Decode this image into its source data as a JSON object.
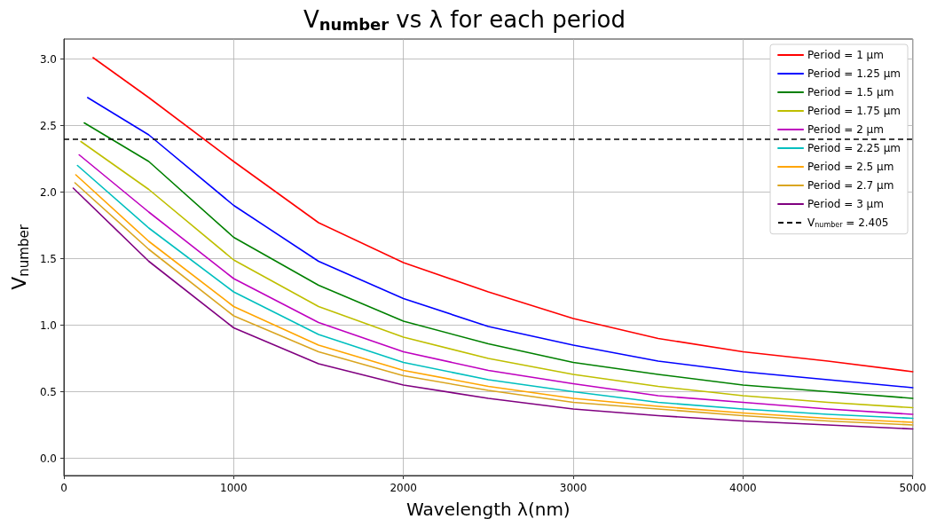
{
  "chart_data": {
    "type": "line",
    "title": "V$_{number}$ vs λ for each period",
    "xlabel": "Wavelength λ(nm)",
    "ylabel": "V$_{number}$",
    "xlim": [
      0,
      5000
    ],
    "xticks": [
      0,
      1000,
      2000,
      3000,
      4000,
      5000
    ],
    "ylim": [
      -0.13,
      3.15
    ],
    "yticks": [
      {
        "value": 0,
        "label": "0.0"
      },
      0.5,
      {
        "value": 1,
        "label": "1.0"
      },
      1.5,
      {
        "value": 2,
        "label": "2.0"
      },
      2.5,
      {
        "value": 3,
        "label": "3.0"
      }
    ],
    "grid": true,
    "legend": "top right",
    "marker": "none",
    "line_style": "solid",
    "series": [
      {
        "name": "Period = 1 μm",
        "color": "#ff0000",
        "x": [
          172,
          500,
          1000,
          1500,
          2000,
          2500,
          3000,
          3500,
          4000,
          4500,
          5000
        ],
        "values": [
          3.01,
          2.71,
          2.23,
          1.77,
          1.47,
          1.25,
          1.05,
          0.9,
          0.8,
          0.73,
          0.65
        ]
      },
      {
        "name": "Period = 1.25 μm",
        "color": "#0000ff",
        "x": [
          140,
          500,
          1000,
          1500,
          2000,
          2500,
          3000,
          3500,
          4000,
          4500,
          5000
        ],
        "values": [
          2.71,
          2.43,
          1.9,
          1.48,
          1.2,
          0.99,
          0.85,
          0.73,
          0.65,
          0.59,
          0.53
        ]
      },
      {
        "name": "Period = 1.5 μm",
        "color": "#008000",
        "x": [
          120,
          500,
          1000,
          1500,
          2000,
          2500,
          3000,
          3500,
          4000,
          4500,
          5000
        ],
        "values": [
          2.52,
          2.23,
          1.66,
          1.3,
          1.03,
          0.86,
          0.72,
          0.63,
          0.55,
          0.5,
          0.45
        ]
      },
      {
        "name": "Period = 1.75 μm",
        "color": "#bfbf00",
        "x": [
          100,
          500,
          1000,
          1500,
          2000,
          2500,
          3000,
          3500,
          4000,
          4500,
          5000
        ],
        "values": [
          2.38,
          2.02,
          1.49,
          1.14,
          0.91,
          0.75,
          0.63,
          0.54,
          0.47,
          0.42,
          0.38
        ]
      },
      {
        "name": "Period = 2 μm",
        "color": "#bf00bf",
        "x": [
          90,
          500,
          1000,
          1500,
          2000,
          2500,
          3000,
          3500,
          4000,
          4500,
          5000
        ],
        "values": [
          2.28,
          1.85,
          1.35,
          1.02,
          0.8,
          0.66,
          0.56,
          0.47,
          0.42,
          0.37,
          0.33
        ]
      },
      {
        "name": "Period = 2.25 μm",
        "color": "#00bfbf",
        "x": [
          80,
          500,
          1000,
          1500,
          2000,
          2500,
          3000,
          3500,
          4000,
          4500,
          5000
        ],
        "values": [
          2.2,
          1.73,
          1.25,
          0.93,
          0.72,
          0.59,
          0.5,
          0.42,
          0.37,
          0.33,
          0.3
        ]
      },
      {
        "name": "Period = 2.5 μm",
        "color": "#ffa500",
        "x": [
          70,
          500,
          1000,
          1500,
          2000,
          2500,
          3000,
          3500,
          4000,
          4500,
          5000
        ],
        "values": [
          2.13,
          1.63,
          1.14,
          0.85,
          0.66,
          0.54,
          0.45,
          0.39,
          0.34,
          0.3,
          0.27
        ]
      },
      {
        "name": "Period = 2.7 μm",
        "color": "#daa520",
        "x": [
          65,
          500,
          1000,
          1500,
          2000,
          2500,
          3000,
          3500,
          4000,
          4500,
          5000
        ],
        "values": [
          2.07,
          1.57,
          1.07,
          0.8,
          0.62,
          0.51,
          0.42,
          0.37,
          0.32,
          0.28,
          0.25
        ]
      },
      {
        "name": "Period = 3 μm",
        "color": "#800080",
        "x": [
          55,
          500,
          1000,
          1500,
          2000,
          2500,
          3000,
          3500,
          4000,
          4500,
          5000
        ],
        "values": [
          2.03,
          1.48,
          0.98,
          0.71,
          0.55,
          0.45,
          0.37,
          0.32,
          0.28,
          0.25,
          0.22
        ]
      }
    ],
    "ref_lines": [
      {
        "axis": "y",
        "value": 2.405,
        "label": "V$_{number}$ = 2.405",
        "color": "#000000",
        "line_style": "dashed"
      }
    ]
  }
}
